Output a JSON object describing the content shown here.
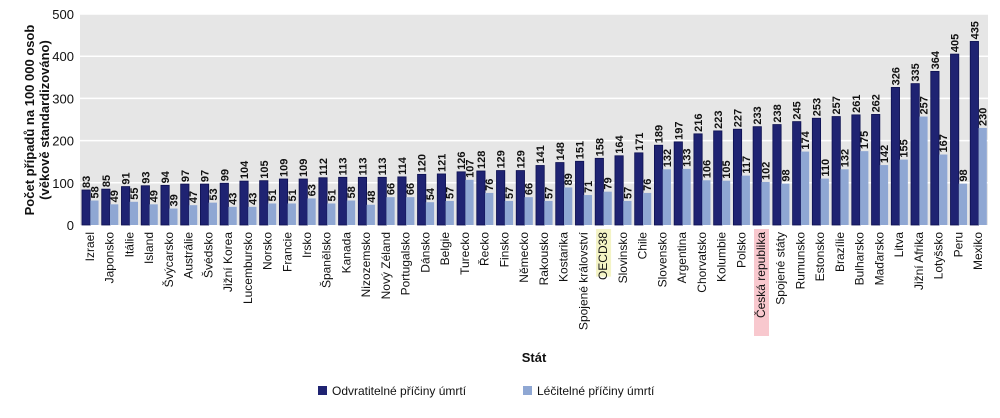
{
  "chart_data": {
    "type": "bar",
    "xlabel": "Stát",
    "ylabel": "Počet případů na 100 000 osob (věkově standardizováno)",
    "ylabel_lines": [
      "Počet případů na 100 000 osob",
      "(věkově standardizováno)"
    ],
    "ylim": [
      0,
      500
    ],
    "yticks": [
      0,
      100,
      200,
      300,
      400,
      500
    ],
    "grid": true,
    "legend_position": "bottom",
    "categories": [
      "Izrael",
      "Japonsko",
      "Itálie",
      "Island",
      "Švýcarsko",
      "Austrálie",
      "Švédsko",
      "Jižní Korea",
      "Lucembursko",
      "Norsko",
      "Francie",
      "Irsko",
      "Španělsko",
      "Kanada",
      "Nizozemsko",
      "Nový Zéland",
      "Portugalsko",
      "Dánsko",
      "Belgie",
      "Turecko",
      "Řecko",
      "Finsko",
      "Německo",
      "Rakousko",
      "Kostarika",
      "Spojené království",
      "OECD38",
      "Slovinsko",
      "Chile",
      "Slovensko",
      "Argentina",
      "Chorvatsko",
      "Kolumbie",
      "Polsko",
      "Česká republika",
      "Spojené státy",
      "Rumunsko",
      "Estonsko",
      "Brazílie",
      "Bulharsko",
      "Maďarsko",
      "Litva",
      "Jižní Afrika",
      "Lotyšsko",
      "Peru",
      "Mexiko"
    ],
    "highlighted": {
      "OECD38": "#f4f4c6",
      "Česká republika": "#f8c8ce"
    },
    "series": [
      {
        "name": "Odvratitelné příčiny úmrtí",
        "color": "#1f2372",
        "values": [
          83,
          85,
          91,
          93,
          94,
          97,
          97,
          99,
          104,
          105,
          109,
          109,
          112,
          113,
          113,
          113,
          114,
          120,
          121,
          126,
          128,
          129,
          129,
          141,
          148,
          151,
          158,
          164,
          171,
          189,
          197,
          216,
          223,
          227,
          233,
          238,
          245,
          253,
          257,
          261,
          262,
          326,
          335,
          364,
          405,
          435
        ]
      },
      {
        "name": "Léčitelné příčiny úmrtí",
        "color": "#8fa7d3",
        "values": [
          58,
          49,
          55,
          49,
          39,
          47,
          53,
          43,
          43,
          51,
          51,
          63,
          51,
          58,
          48,
          66,
          66,
          54,
          57,
          107,
          76,
          57,
          66,
          57,
          89,
          71,
          79,
          57,
          76,
          132,
          133,
          106,
          105,
          117,
          102,
          98,
          174,
          110,
          132,
          175,
          142,
          155,
          257,
          167,
          98,
          230
        ]
      }
    ]
  }
}
